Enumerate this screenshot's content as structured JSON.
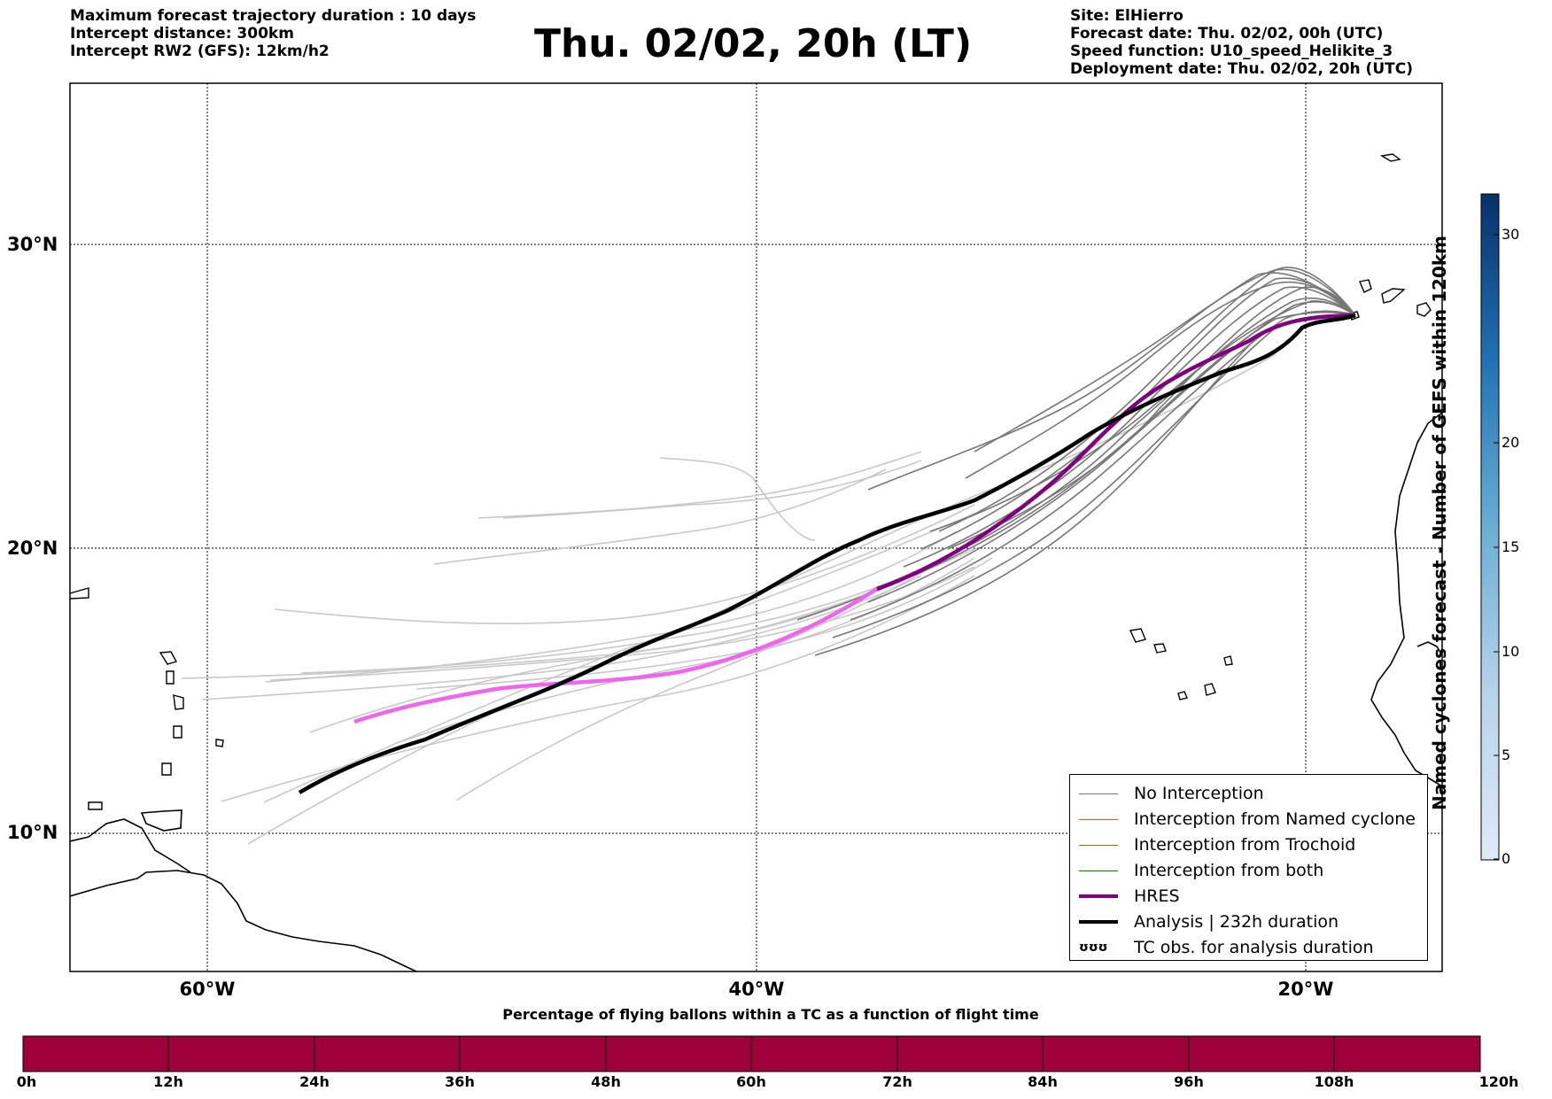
{
  "header_left": {
    "line1": "Maximum forecast trajectory duration : 10 days",
    "line2": "Intercept distance: 300km",
    "line3": "Intercept RW2 (GFS):  12km/h2"
  },
  "title": "Thu. 02/02, 20h (LT)",
  "header_right": {
    "line1": "Site: ElHierro",
    "line2": "Forecast date: Thu. 02/02, 00h (UTC)",
    "line3": "Speed function: U10_speed_Helikite_3",
    "line4": "Deployment date: Thu. 02/02, 20h (UTC)"
  },
  "map": {
    "lat_labels": [
      "30°N",
      "20°N",
      "10°N"
    ],
    "lon_labels": [
      "60°W",
      "40°W",
      "20°W"
    ],
    "gridlines": true
  },
  "legend": {
    "items": [
      {
        "label": "No Interception",
        "color": "#777777"
      },
      {
        "label": "Interception from Named cyclone",
        "color": "#ff5500"
      },
      {
        "label": "Interception from Trochoid",
        "color": "#808000"
      },
      {
        "label": "Interception from both",
        "color": "#008000"
      },
      {
        "label": "HRES",
        "color": "#800080"
      },
      {
        "label": "Analysis | 232h duration",
        "color": "#000000"
      },
      {
        "label": "TC obs. for analysis duration",
        "symbol": "ʊʊʊ"
      }
    ],
    "placement": "lower-right"
  },
  "colorbar": {
    "title": "Named cyclones forecast - Number of GEFS within 120km",
    "ticks": [
      "0",
      "5",
      "10",
      "15",
      "20",
      "30"
    ],
    "min": 0,
    "max": 32,
    "colormap": "Blues"
  },
  "time_bar": {
    "title": "Percentage of flying ballons within a TC as a function of flight time",
    "color": "#9e0039",
    "hour_labels": [
      "0h",
      "12h",
      "24h",
      "36h",
      "48h",
      "60h",
      "72h",
      "84h",
      "96h",
      "108h",
      "120h"
    ]
  }
}
